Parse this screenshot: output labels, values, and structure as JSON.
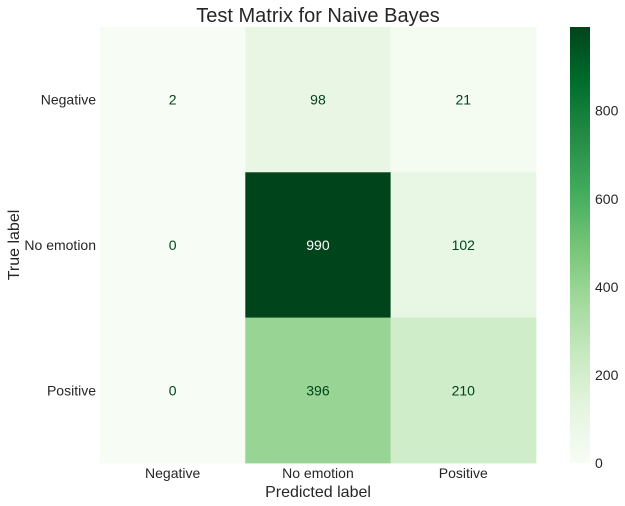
{
  "chart_data": {
    "type": "heatmap",
    "title": "Test Matrix for Naive Bayes",
    "xlabel": "Predicted label",
    "ylabel": "True label",
    "x_categories": [
      "Negative",
      "No emotion",
      "Positive"
    ],
    "y_categories": [
      "Negative",
      "No emotion",
      "Positive"
    ],
    "values": [
      [
        2,
        98,
        21
      ],
      [
        0,
        990,
        102
      ],
      [
        0,
        396,
        210
      ]
    ],
    "colormap": "Greens",
    "vmin": 0,
    "vmax": 990,
    "colorbar_ticks": [
      0,
      200,
      400,
      600,
      800
    ],
    "grid": false
  }
}
